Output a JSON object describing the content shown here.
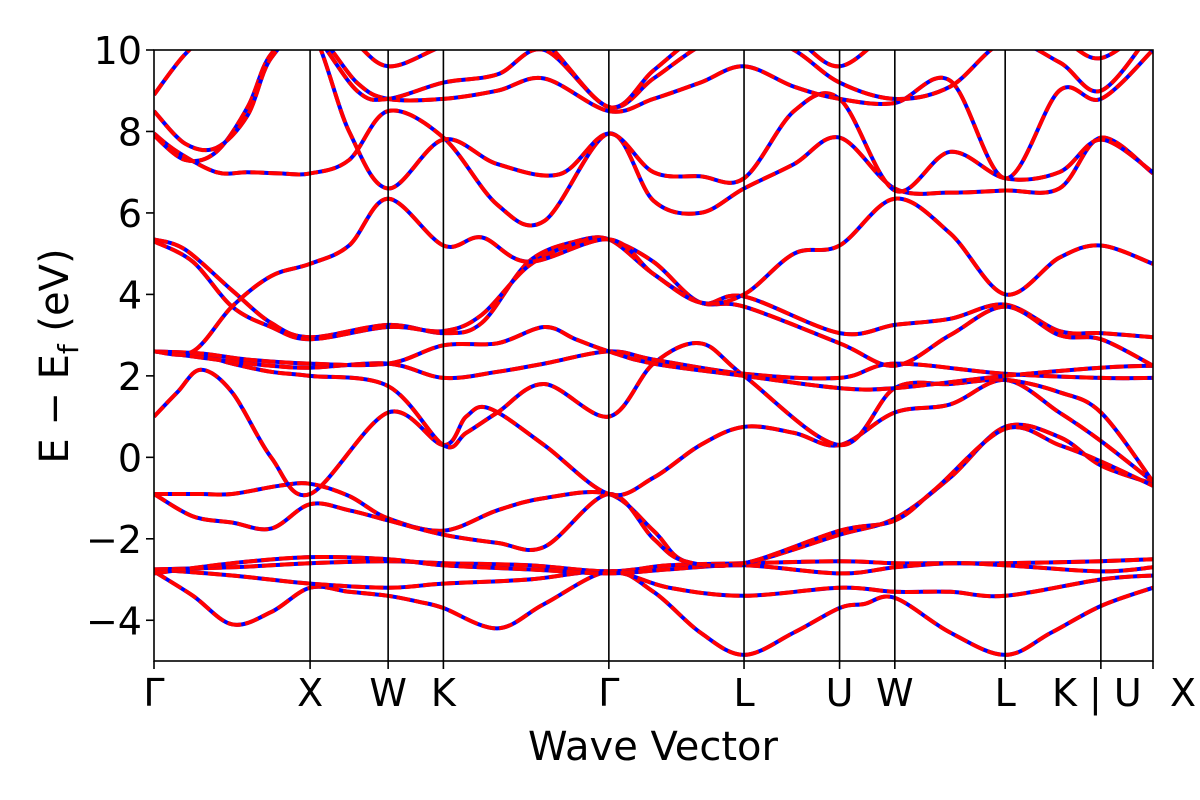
{
  "chart_data": {
    "type": "line",
    "title": "",
    "xlabel": "Wave Vector",
    "ylabel_main": "E − E",
    "ylabel_sub": "f",
    "ylabel_unit": " (eV)",
    "ylim": [
      -5,
      10
    ],
    "yticks": [
      -4,
      -2,
      0,
      2,
      4,
      6,
      8,
      10
    ],
    "ytick_labels": [
      "−4",
      "−2",
      "0",
      "2",
      "4",
      "6",
      "8",
      "10"
    ],
    "xlim": [
      0,
      6.4
    ],
    "kpoints": [
      {
        "label": "Γ",
        "x": 0.0
      },
      {
        "label": "X",
        "x": 1.0
      },
      {
        "label": "W",
        "x": 1.5
      },
      {
        "label": "K",
        "x": 1.854
      },
      {
        "label": "Γ",
        "x": 2.914
      },
      {
        "label": "L",
        "x": 3.78
      },
      {
        "label": "U",
        "x": 4.392
      },
      {
        "label": "W",
        "x": 4.746
      },
      {
        "label": "L",
        "x": 5.453
      },
      {
        "label": "K | U",
        "x": 6.066
      },
      {
        "label": "X",
        "x": 6.4
      }
    ],
    "line_colors": {
      "primary": "#0000ff",
      "overlay": "#ff0000"
    },
    "grid": false,
    "series": [
      {
        "x": [
          0,
          0.25,
          0.5,
          0.75,
          1.0,
          1.25,
          1.5,
          1.7,
          1.854,
          2.2,
          2.5,
          2.914,
          3.2,
          3.5,
          3.78,
          4.1,
          4.392,
          4.55,
          4.746,
          5.1,
          5.453,
          5.75,
          6.066,
          6.4
        ],
        "y": [
          -2.8,
          -3.4,
          -4.1,
          -3.8,
          -3.2,
          -3.3,
          -3.4,
          -3.55,
          -3.7,
          -4.2,
          -3.6,
          -2.8,
          -3.3,
          -4.3,
          -4.85,
          -4.3,
          -3.7,
          -3.6,
          -3.45,
          -4.3,
          -4.85,
          -4.3,
          -3.65,
          -3.2
        ]
      },
      {
        "x": [
          0,
          0.5,
          1.0,
          1.5,
          1.854,
          2.4,
          2.914,
          3.3,
          3.78,
          4.392,
          4.746,
          5.1,
          5.453,
          6.066,
          6.4
        ],
        "y": [
          -2.75,
          -2.9,
          -3.1,
          -3.2,
          -3.1,
          -3.0,
          -2.8,
          -3.2,
          -3.4,
          -3.2,
          -3.3,
          -3.3,
          -3.4,
          -3.0,
          -2.9
        ]
      },
      {
        "x": [
          0,
          0.5,
          1.0,
          1.5,
          1.854,
          2.4,
          2.914,
          3.3,
          3.78,
          4.392,
          4.746,
          5.1,
          5.453,
          6.066,
          6.4
        ],
        "y": [
          -2.75,
          -2.7,
          -2.6,
          -2.55,
          -2.6,
          -2.65,
          -2.8,
          -2.65,
          -2.6,
          -2.55,
          -2.6,
          -2.6,
          -2.6,
          -2.55,
          -2.5
        ]
      },
      {
        "x": [
          0,
          0.5,
          1.0,
          1.5,
          1.854,
          2.4,
          2.914,
          3.3,
          3.78,
          4.392,
          4.746,
          5.1,
          5.453,
          6.066,
          6.4
        ],
        "y": [
          -2.85,
          -2.6,
          -2.45,
          -2.5,
          -2.65,
          -2.75,
          -2.85,
          -2.75,
          -2.65,
          -2.85,
          -2.7,
          -2.6,
          -2.65,
          -2.8,
          -2.7
        ]
      },
      {
        "x": [
          0,
          0.3,
          0.5,
          0.8,
          1.0,
          1.25,
          1.5,
          1.854,
          2.2,
          2.5,
          2.914,
          3.2,
          3.4,
          3.78,
          4.392,
          4.746,
          5.1,
          5.453,
          5.8,
          6.066,
          6.4
        ],
        "y": [
          -0.9,
          -0.9,
          -0.9,
          -0.7,
          -0.65,
          -0.95,
          -1.5,
          -1.8,
          -1.3,
          -1.0,
          -0.9,
          -1.8,
          -2.55,
          -2.6,
          -1.9,
          -1.5,
          -0.5,
          0.75,
          0.5,
          -0.2,
          -0.65
        ]
      },
      {
        "x": [
          0,
          0.25,
          0.5,
          0.75,
          1.0,
          1.25,
          1.5,
          1.854,
          2.2,
          2.5,
          2.914,
          3.2,
          3.4,
          3.78,
          4.392,
          4.746,
          5.0,
          5.453,
          5.8,
          6.066,
          6.4
        ],
        "y": [
          -0.9,
          -1.45,
          -1.6,
          -1.75,
          -1.15,
          -1.3,
          -1.55,
          -1.9,
          -2.1,
          -2.2,
          -0.9,
          -2.0,
          -2.55,
          -2.6,
          -1.8,
          -1.55,
          -0.8,
          0.7,
          0.3,
          -0.1,
          -0.7
        ]
      },
      {
        "x": [
          0,
          0.15,
          0.3,
          0.5,
          0.75,
          1.0,
          1.5,
          1.854,
          2.0,
          2.15,
          2.5,
          2.914,
          3.2,
          3.5,
          3.78,
          4.1,
          4.392,
          4.746,
          5.1,
          5.453,
          5.8,
          6.066,
          6.4
        ],
        "y": [
          1.0,
          1.6,
          2.15,
          1.6,
          0.0,
          -0.9,
          1.1,
          0.3,
          1.0,
          1.2,
          0.3,
          -0.9,
          -0.5,
          0.3,
          0.75,
          0.6,
          0.3,
          1.1,
          1.3,
          1.9,
          1.1,
          0.4,
          -0.6
        ]
      },
      {
        "x": [
          0,
          0.3,
          0.5,
          0.75,
          1.0,
          1.5,
          1.854,
          2.0,
          2.2,
          2.5,
          2.914,
          3.2,
          3.5,
          3.78,
          4.392,
          4.746,
          5.1,
          5.453,
          5.8,
          6.066,
          6.4
        ],
        "y": [
          2.6,
          2.5,
          2.3,
          2.1,
          2.0,
          1.75,
          0.3,
          0.6,
          1.1,
          1.8,
          1.0,
          2.3,
          2.8,
          2.0,
          0.3,
          1.7,
          1.8,
          1.9,
          1.6,
          1.1,
          -0.6
        ]
      },
      {
        "x": [
          0,
          0.3,
          0.5,
          0.75,
          1.0,
          1.5,
          1.854,
          2.2,
          2.5,
          2.914,
          3.2,
          3.78,
          4.392,
          4.746,
          5.453,
          6.066,
          6.4
        ],
        "y": [
          2.6,
          2.45,
          2.35,
          2.25,
          2.2,
          2.3,
          1.95,
          2.1,
          2.3,
          2.6,
          2.4,
          2.05,
          1.95,
          2.3,
          2.05,
          1.95,
          1.95
        ]
      },
      {
        "x": [
          0,
          0.3,
          0.6,
          1.0,
          1.5,
          1.854,
          2.2,
          2.5,
          2.7,
          2.914,
          3.2,
          3.78,
          4.392,
          4.746,
          5.453,
          6.066,
          6.4
        ],
        "y": [
          2.6,
          2.55,
          2.4,
          2.3,
          2.3,
          2.75,
          2.8,
          3.2,
          2.9,
          2.6,
          2.3,
          2.0,
          1.7,
          1.7,
          2.0,
          2.2,
          2.25
        ]
      },
      {
        "x": [
          0,
          0.2,
          0.5,
          0.75,
          1.0,
          1.5,
          1.854,
          2.1,
          2.4,
          2.7,
          2.914,
          3.2,
          3.5,
          3.78,
          4.392,
          4.746,
          5.1,
          5.453,
          5.8,
          6.066,
          6.4
        ],
        "y": [
          5.35,
          5.1,
          4.1,
          3.3,
          2.95,
          3.25,
          3.05,
          3.3,
          4.8,
          5.3,
          5.35,
          4.8,
          3.8,
          3.95,
          3.05,
          3.25,
          3.4,
          3.75,
          3.1,
          3.05,
          2.95
        ]
      },
      {
        "x": [
          0,
          0.25,
          0.5,
          0.75,
          1.0,
          1.5,
          1.854,
          2.1,
          2.4,
          2.7,
          2.914,
          3.2,
          3.5,
          3.78,
          4.392,
          4.746,
          5.1,
          5.453,
          5.8,
          6.066,
          6.4
        ],
        "y": [
          5.3,
          4.8,
          3.7,
          3.2,
          2.9,
          3.2,
          3.1,
          3.5,
          4.7,
          5.25,
          5.35,
          4.5,
          3.8,
          3.7,
          2.8,
          2.25,
          3.0,
          3.7,
          3.0,
          2.9,
          2.25
        ]
      },
      {
        "x": [
          0,
          0.25,
          0.5,
          0.75,
          1.0,
          1.25,
          1.5,
          1.854,
          2.1,
          2.4,
          2.914,
          3.2,
          3.5,
          3.78,
          4.1,
          4.392,
          4.746,
          5.1,
          5.453,
          5.8,
          6.066,
          6.4
        ],
        "y": [
          2.6,
          2.6,
          3.7,
          4.45,
          4.75,
          5.2,
          6.35,
          5.2,
          5.4,
          4.8,
          5.35,
          4.5,
          3.8,
          4.0,
          5.0,
          5.2,
          6.35,
          5.5,
          4.0,
          4.9,
          5.2,
          4.75
        ]
      },
      {
        "x": [
          0,
          0.15,
          0.4,
          0.6,
          0.8,
          1.0,
          1.25,
          1.5,
          1.854,
          2.2,
          2.5,
          2.914,
          3.2,
          3.5,
          3.78,
          4.1,
          4.392,
          4.746,
          5.1,
          5.453,
          5.8,
          6.066,
          6.4
        ],
        "y": [
          7.95,
          7.5,
          7.0,
          7.0,
          6.97,
          6.97,
          7.3,
          8.5,
          7.85,
          6.2,
          5.8,
          7.95,
          6.3,
          6.0,
          6.6,
          7.2,
          7.85,
          6.6,
          6.5,
          6.55,
          6.6,
          7.85,
          6.97
        ]
      },
      {
        "x": [
          0,
          0.2,
          0.4,
          0.6,
          0.75,
          1.0,
          1.25,
          1.5,
          1.854,
          2.2,
          2.6,
          2.914,
          3.2,
          3.5,
          3.78,
          4.1,
          4.392,
          4.746,
          5.1,
          5.453,
          5.8,
          6.066,
          6.4
        ],
        "y": [
          7.9,
          7.3,
          7.5,
          8.6,
          9.9,
          10.5,
          8.0,
          6.6,
          7.8,
          7.2,
          6.95,
          7.95,
          7.0,
          6.9,
          6.85,
          8.5,
          8.8,
          6.55,
          7.5,
          6.85,
          7.0,
          7.8,
          7.0
        ]
      },
      {
        "x": [
          0,
          0.2,
          0.4,
          0.6,
          0.75,
          1.0,
          1.3,
          1.5,
          1.854,
          2.2,
          2.5,
          2.914,
          3.2,
          3.5,
          3.78,
          4.1,
          4.392,
          4.746,
          5.1,
          5.453,
          5.8,
          6.066,
          6.4
        ],
        "y": [
          8.5,
          7.7,
          7.6,
          8.4,
          9.8,
          10.5,
          9.2,
          8.8,
          8.8,
          9.0,
          9.3,
          8.5,
          8.8,
          9.2,
          9.6,
          9.1,
          8.8,
          8.7,
          9.25,
          6.85,
          9.0,
          8.8,
          10.0
        ]
      },
      {
        "x": [
          0,
          0.2,
          0.4,
          0.6,
          0.8,
          1.0,
          1.3,
          1.5,
          1.854,
          2.2,
          2.5,
          2.914,
          3.2,
          3.5,
          3.78,
          4.1,
          4.392,
          4.746,
          5.1,
          5.453,
          5.8,
          6.066,
          6.4
        ],
        "y": [
          8.9,
          9.9,
          10.5,
          10.6,
          10.6,
          10.5,
          9.0,
          8.8,
          9.2,
          9.4,
          10.0,
          8.6,
          9.3,
          10.1,
          10.5,
          10.0,
          9.2,
          8.8,
          9.1,
          10.2,
          9.7,
          9.0,
          10.5
        ]
      },
      {
        "x": [
          0,
          0.25,
          0.5,
          0.75,
          1.0,
          1.25,
          1.5,
          1.854,
          2.2,
          2.5,
          2.914,
          3.2,
          3.5,
          3.78,
          4.1,
          4.392,
          4.746,
          5.1,
          5.453,
          5.8,
          6.066,
          6.4
        ],
        "y": [
          10.2,
          10.6,
          10.8,
          10.8,
          10.7,
          10.3,
          9.6,
          10.1,
          10.5,
          10.2,
          8.6,
          9.5,
          10.4,
          10.8,
          10.3,
          9.6,
          10.5,
          10.7,
          10.8,
          10.3,
          9.8,
          10.7
        ]
      }
    ]
  }
}
